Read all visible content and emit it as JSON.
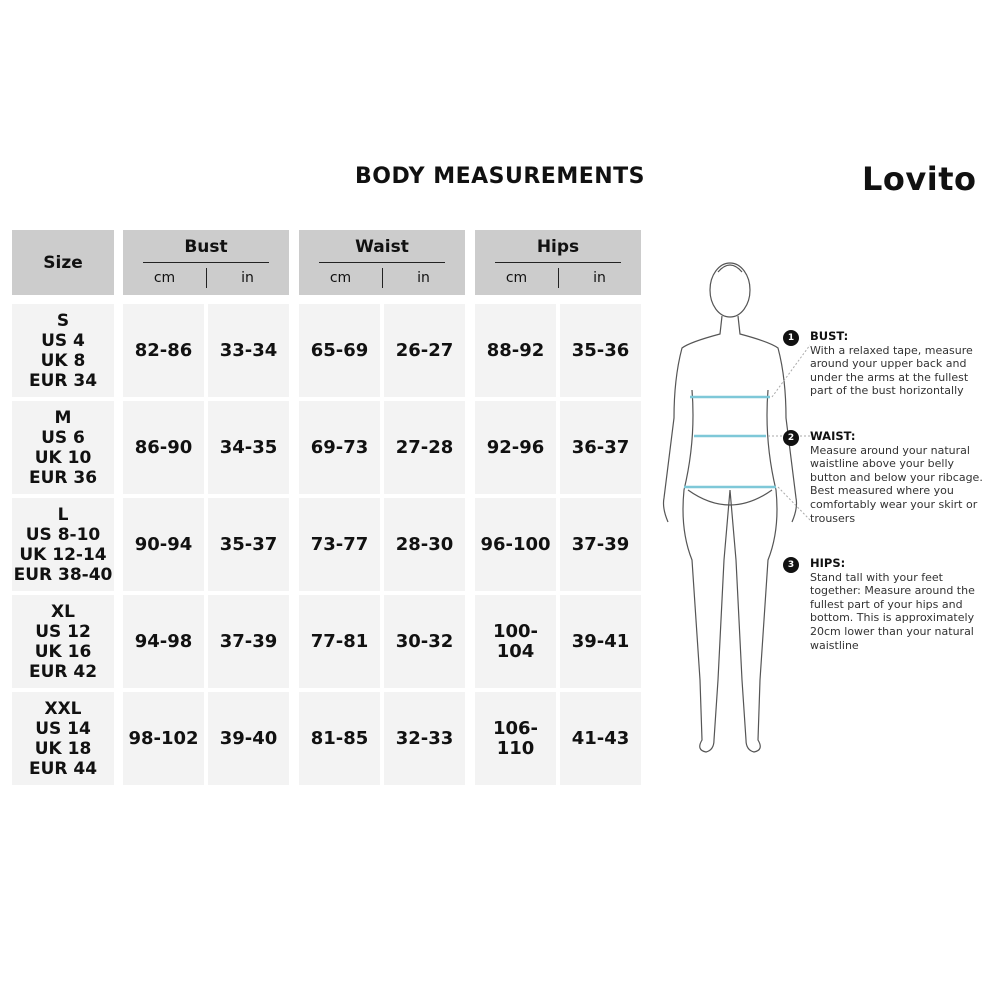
{
  "title": "BODY MEASUREMENTS",
  "brand": "Lovito",
  "table": {
    "size_header": "Size",
    "groups": [
      {
        "name": "Bust",
        "units": [
          "cm",
          "in"
        ]
      },
      {
        "name": "Waist",
        "units": [
          "cm",
          "in"
        ]
      },
      {
        "name": "Hips",
        "units": [
          "cm",
          "in"
        ]
      }
    ],
    "rows": [
      {
        "size": "S\nUS 4\nUK 8\nEUR 34",
        "values": [
          "82-86",
          "33-34",
          "65-69",
          "26-27",
          "88-92",
          "35-36"
        ]
      },
      {
        "size": "M\nUS 6\nUK 10\nEUR 36",
        "values": [
          "86-90",
          "34-35",
          "69-73",
          "27-28",
          "92-96",
          "36-37"
        ]
      },
      {
        "size": "L\nUS 8-10\nUK 12-14\nEUR 38-40",
        "values": [
          "90-94",
          "35-37",
          "73-77",
          "28-30",
          "96-100",
          "37-39"
        ]
      },
      {
        "size": "XL\nUS 12\nUK 16\nEUR 42",
        "values": [
          "94-98",
          "37-39",
          "77-81",
          "30-32",
          "100-104",
          "39-41"
        ]
      },
      {
        "size": "XXL\nUS 14\nUK 18\nEUR 44",
        "values": [
          "98-102",
          "39-40",
          "81-85",
          "32-33",
          "106-110",
          "41-43"
        ]
      }
    ]
  },
  "instructions": [
    {
      "num": "1",
      "title": "BUST:",
      "text": "With a relaxed tape, measure around your upper back and under the arms at the fullest part of the bust horizontally"
    },
    {
      "num": "2",
      "title": "WAIST:",
      "text": "Measure around your natural waistline above your belly button and below your ribcage. Best measured where you comfortably wear your skirt or trousers"
    },
    {
      "num": "3",
      "title": "HIPS:",
      "text": "Stand tall with your feet together: Measure around the fullest part of your hips and bottom. This is approximately 20cm lower than your natural waistline"
    }
  ],
  "colors": {
    "header_bg": "#cccccc",
    "cell_bg": "#f3f3f3",
    "tape": "#7ec8d8"
  }
}
